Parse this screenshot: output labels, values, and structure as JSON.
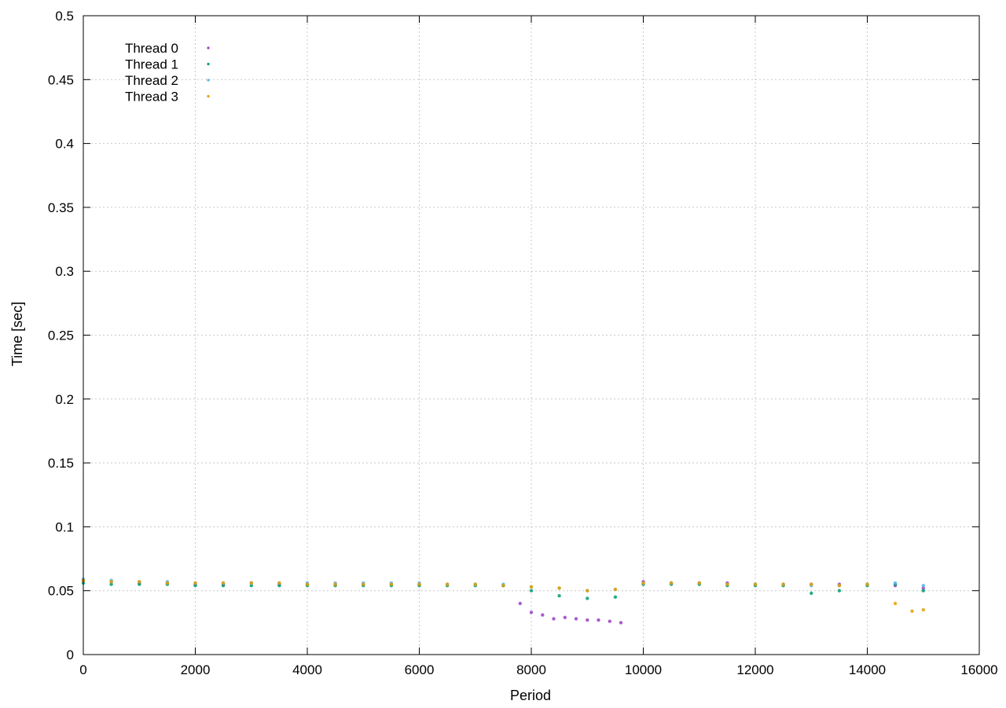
{
  "chart_data": {
    "type": "scatter",
    "title": "",
    "xlabel": "Period",
    "ylabel": "Time [sec]",
    "xlim": [
      0,
      16000
    ],
    "ylim": [
      0,
      0.5
    ],
    "xticks": [
      0,
      2000,
      4000,
      6000,
      8000,
      10000,
      12000,
      14000,
      16000
    ],
    "yticks": [
      0,
      0.05,
      0.1,
      0.15,
      0.2,
      0.25,
      0.3,
      0.35,
      0.4,
      0.45,
      0.5
    ],
    "xtick_labels": [
      "0",
      "2000",
      "4000",
      "6000",
      "8000",
      "10000",
      "12000",
      "14000",
      "16000"
    ],
    "ytick_labels": [
      "0",
      "0.05",
      "0.1",
      "0.15",
      "0.2",
      "0.25",
      "0.3",
      "0.35",
      "0.4",
      "0.45",
      "0.5"
    ],
    "grid": true,
    "legend_position": "top-left",
    "series": [
      {
        "name": "Thread 0",
        "color": "#9a40c8",
        "x": [
          0,
          500,
          1000,
          1500,
          2000,
          2500,
          3000,
          3500,
          4000,
          4500,
          5000,
          5500,
          6000,
          6500,
          7000,
          7500,
          7800,
          8000,
          8200,
          8400,
          8600,
          8800,
          9000,
          9200,
          9400,
          9600,
          10000,
          10500,
          11000,
          11500,
          12000,
          12500,
          13000,
          13500,
          14000,
          14500,
          15000
        ],
        "values": [
          0.058,
          0.057,
          0.056,
          0.056,
          0.055,
          0.055,
          0.056,
          0.055,
          0.055,
          0.055,
          0.055,
          0.055,
          0.055,
          0.055,
          0.055,
          0.054,
          0.04,
          0.033,
          0.031,
          0.028,
          0.029,
          0.028,
          0.027,
          0.027,
          0.026,
          0.025,
          0.057,
          0.056,
          0.056,
          0.056,
          0.055,
          0.055,
          0.055,
          0.055,
          0.055,
          0.054,
          0.052
        ]
      },
      {
        "name": "Thread 1",
        "color": "#009e73",
        "x": [
          0,
          500,
          1000,
          1500,
          2000,
          2500,
          3000,
          3500,
          4000,
          4500,
          5000,
          5500,
          6000,
          6500,
          7000,
          7500,
          8000,
          8500,
          9000,
          9500,
          10000,
          10500,
          11000,
          11500,
          12000,
          12500,
          13000,
          13500,
          14000,
          14500,
          15000
        ],
        "values": [
          0.056,
          0.055,
          0.055,
          0.055,
          0.054,
          0.054,
          0.054,
          0.054,
          0.054,
          0.054,
          0.054,
          0.054,
          0.054,
          0.054,
          0.054,
          0.054,
          0.05,
          0.046,
          0.044,
          0.045,
          0.055,
          0.055,
          0.055,
          0.054,
          0.054,
          0.054,
          0.048,
          0.05,
          0.054,
          0.055,
          0.05
        ]
      },
      {
        "name": "Thread 2",
        "color": "#56b4e9",
        "x": [
          0,
          500,
          1000,
          1500,
          2000,
          2500,
          3000,
          3500,
          4000,
          4500,
          5000,
          5500,
          6000,
          6500,
          7000,
          7500,
          8000,
          8500,
          9000,
          9500,
          10000,
          10500,
          11000,
          11500,
          12000,
          12500,
          13000,
          13500,
          14000,
          14500,
          15000
        ],
        "values": [
          0.059,
          0.058,
          0.057,
          0.057,
          0.056,
          0.056,
          0.056,
          0.056,
          0.056,
          0.056,
          0.056,
          0.056,
          0.056,
          0.055,
          0.055,
          0.055,
          0.053,
          0.052,
          0.05,
          0.051,
          0.056,
          0.056,
          0.056,
          0.055,
          0.055,
          0.055,
          0.054,
          0.054,
          0.055,
          0.056,
          0.054
        ]
      },
      {
        "name": "Thread 3",
        "color": "#e69f00",
        "x": [
          0,
          500,
          1000,
          1500,
          2000,
          2500,
          3000,
          3500,
          4000,
          4500,
          5000,
          5500,
          6000,
          6500,
          7000,
          7500,
          8000,
          8500,
          9000,
          9500,
          10000,
          10500,
          11000,
          11500,
          12000,
          12500,
          13000,
          13500,
          14000,
          14500,
          14800,
          15000
        ],
        "values": [
          0.058,
          0.057,
          0.057,
          0.056,
          0.056,
          0.056,
          0.056,
          0.056,
          0.055,
          0.055,
          0.055,
          0.055,
          0.055,
          0.055,
          0.055,
          0.054,
          0.053,
          0.052,
          0.05,
          0.051,
          0.056,
          0.056,
          0.056,
          0.055,
          0.055,
          0.055,
          0.055,
          0.054,
          0.055,
          0.04,
          0.034,
          0.035
        ]
      }
    ]
  }
}
